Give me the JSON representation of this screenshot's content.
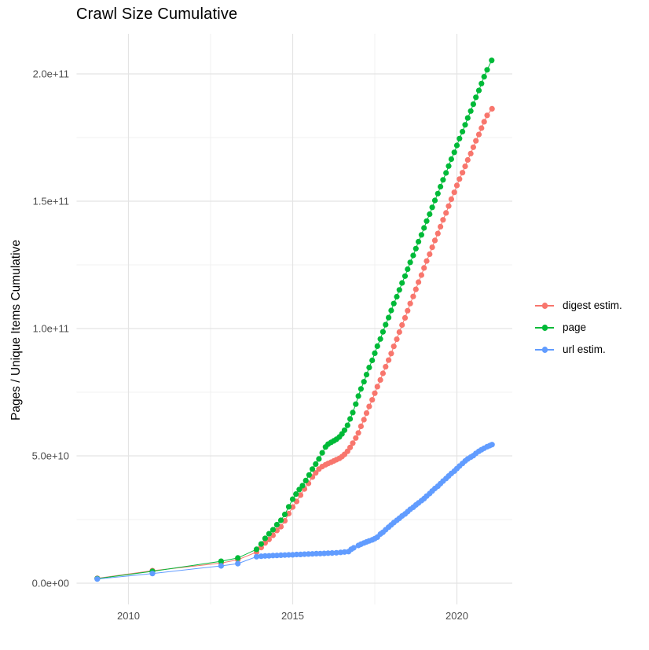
{
  "title": "Crawl Size Cumulative",
  "axes": {
    "y_label": "Pages / Unique Items Cumulative",
    "y_ticks": [
      {
        "label": "0.0e+00",
        "value_e9": 0
      },
      {
        "label": "5.0e+10",
        "value_e9": 50
      },
      {
        "label": "1.0e+11",
        "value_e9": 100
      },
      {
        "label": "1.5e+11",
        "value_e9": 150
      },
      {
        "label": "2.0e+11",
        "value_e9": 200
      }
    ],
    "x_ticks": [
      {
        "label": "2010",
        "value": 2010
      },
      {
        "label": "2015",
        "value": 2015
      },
      {
        "label": "2020",
        "value": 2020
      }
    ]
  },
  "legend": {
    "items": [
      {
        "label": "digest estim.",
        "color": "#F8766D"
      },
      {
        "label": "page",
        "color": "#00BA38"
      },
      {
        "label": "url estim.",
        "color": "#619CFF"
      }
    ]
  },
  "colors": {
    "digest": "#F8766D",
    "page": "#00BA38",
    "url": "#619CFF",
    "grid_major": "#e4e4e4",
    "grid_minor": "#f0f0f0",
    "tick_text": "#4d4d4d"
  },
  "chart_data": {
    "type": "line",
    "title": "Crawl Size Cumulative",
    "xlabel": "",
    "ylabel": "Pages / Unique Items Cumulative",
    "x_unit": "year",
    "y_scale_factor": 1000000000.0,
    "xlim": [
      2008.4,
      2021.7
    ],
    "ylim_e9": [
      -8,
      216
    ],
    "grid": {
      "on": true,
      "minor_y_e9": [
        25,
        75,
        125,
        175
      ],
      "minor_x_years": [
        2012.5,
        2017.5
      ]
    },
    "legend_position": "right",
    "series": [
      {
        "id": "digest",
        "name": "digest estim.",
        "color": "#F8766D",
        "points": [
          [
            2009.05,
            1.9
          ],
          [
            2010.73,
            4.9
          ],
          [
            2012.82,
            7.9
          ],
          [
            2013.33,
            9.2
          ],
          [
            2013.9,
            12.2
          ],
          [
            2014.04,
            14.0
          ],
          [
            2014.16,
            15.8
          ],
          [
            2014.28,
            17.2
          ],
          [
            2014.4,
            18.8
          ],
          [
            2014.52,
            20.7
          ],
          [
            2014.64,
            22.2
          ],
          [
            2014.76,
            24.5
          ],
          [
            2014.88,
            27.3
          ],
          [
            2015.0,
            29.9
          ],
          [
            2015.12,
            32.1
          ],
          [
            2015.24,
            34.6
          ],
          [
            2015.36,
            37.0
          ],
          [
            2015.48,
            39.2
          ],
          [
            2015.6,
            41.7
          ],
          [
            2015.7,
            43.3
          ],
          [
            2015.8,
            44.8
          ],
          [
            2015.9,
            45.8
          ],
          [
            2016.0,
            46.5
          ],
          [
            2016.08,
            47.0
          ],
          [
            2016.17,
            47.5
          ],
          [
            2016.25,
            48.0
          ],
          [
            2016.33,
            48.5
          ],
          [
            2016.42,
            49.0
          ],
          [
            2016.5,
            49.7
          ],
          [
            2016.58,
            50.6
          ],
          [
            2016.67,
            51.8
          ],
          [
            2016.75,
            53.3
          ],
          [
            2016.83,
            55.0
          ],
          [
            2016.92,
            57.0
          ],
          [
            2017.0,
            59.0
          ],
          [
            2017.08,
            61.6
          ],
          [
            2017.17,
            64.2
          ],
          [
            2017.25,
            66.8
          ],
          [
            2017.33,
            69.4
          ],
          [
            2017.42,
            72.0
          ],
          [
            2017.5,
            74.6
          ],
          [
            2017.58,
            77.2
          ],
          [
            2017.67,
            79.8
          ],
          [
            2017.75,
            82.4
          ],
          [
            2017.83,
            85.0
          ],
          [
            2017.92,
            87.6
          ],
          [
            2018.0,
            90.2
          ],
          [
            2018.08,
            93.0
          ],
          [
            2018.17,
            95.8
          ],
          [
            2018.25,
            98.6
          ],
          [
            2018.33,
            101.4
          ],
          [
            2018.42,
            104.2
          ],
          [
            2018.5,
            107.0
          ],
          [
            2018.58,
            109.8
          ],
          [
            2018.67,
            112.6
          ],
          [
            2018.75,
            115.4
          ],
          [
            2018.83,
            118.2
          ],
          [
            2018.92,
            121.0
          ],
          [
            2019.0,
            123.8
          ],
          [
            2019.08,
            126.5
          ],
          [
            2019.17,
            129.2
          ],
          [
            2019.25,
            131.9
          ],
          [
            2019.33,
            134.6
          ],
          [
            2019.42,
            137.3
          ],
          [
            2019.5,
            140.0
          ],
          [
            2019.58,
            142.7
          ],
          [
            2019.67,
            145.4
          ],
          [
            2019.75,
            148.1
          ],
          [
            2019.83,
            150.8
          ],
          [
            2019.92,
            153.5
          ],
          [
            2020.0,
            156.2
          ],
          [
            2020.08,
            158.7
          ],
          [
            2020.17,
            161.2
          ],
          [
            2020.25,
            163.7
          ],
          [
            2020.33,
            166.2
          ],
          [
            2020.42,
            168.7
          ],
          [
            2020.5,
            171.2
          ],
          [
            2020.58,
            173.7
          ],
          [
            2020.67,
            176.2
          ],
          [
            2020.75,
            178.7
          ],
          [
            2020.83,
            181.2
          ],
          [
            2020.92,
            183.7
          ],
          [
            2021.07,
            186.3
          ]
        ]
      },
      {
        "id": "page",
        "name": "page",
        "color": "#00BA38",
        "points": [
          [
            2009.05,
            1.8
          ],
          [
            2010.73,
            4.65
          ],
          [
            2012.82,
            8.6
          ],
          [
            2013.33,
            9.9
          ],
          [
            2013.9,
            13.3
          ],
          [
            2014.04,
            15.4
          ],
          [
            2014.16,
            17.6
          ],
          [
            2014.28,
            19.4
          ],
          [
            2014.4,
            21.0
          ],
          [
            2014.52,
            23.0
          ],
          [
            2014.64,
            24.7
          ],
          [
            2014.76,
            27.0
          ],
          [
            2014.88,
            30.0
          ],
          [
            2015.0,
            33.0
          ],
          [
            2015.1,
            35.0
          ],
          [
            2015.2,
            36.8
          ],
          [
            2015.3,
            38.3
          ],
          [
            2015.4,
            40.3
          ],
          [
            2015.5,
            42.5
          ],
          [
            2015.6,
            44.8
          ],
          [
            2015.7,
            46.8
          ],
          [
            2015.8,
            48.8
          ],
          [
            2015.9,
            51.2
          ],
          [
            2016.0,
            53.5
          ],
          [
            2016.08,
            54.6
          ],
          [
            2016.17,
            55.3
          ],
          [
            2016.25,
            55.9
          ],
          [
            2016.33,
            56.5
          ],
          [
            2016.42,
            57.4
          ],
          [
            2016.5,
            58.6
          ],
          [
            2016.58,
            60.1
          ],
          [
            2016.67,
            62.0
          ],
          [
            2016.75,
            64.5
          ],
          [
            2016.83,
            67.0
          ],
          [
            2016.92,
            70.3
          ],
          [
            2017.0,
            73.5
          ],
          [
            2017.08,
            76.3
          ],
          [
            2017.17,
            79.1
          ],
          [
            2017.25,
            81.9
          ],
          [
            2017.33,
            84.7
          ],
          [
            2017.42,
            87.5
          ],
          [
            2017.5,
            90.3
          ],
          [
            2017.58,
            93.1
          ],
          [
            2017.67,
            95.9
          ],
          [
            2017.75,
            98.7
          ],
          [
            2017.83,
            101.5
          ],
          [
            2017.92,
            104.3
          ],
          [
            2018.0,
            107.1
          ],
          [
            2018.08,
            109.8
          ],
          [
            2018.17,
            112.5
          ],
          [
            2018.25,
            115.2
          ],
          [
            2018.33,
            117.9
          ],
          [
            2018.42,
            120.6
          ],
          [
            2018.5,
            123.3
          ],
          [
            2018.58,
            126.0
          ],
          [
            2018.67,
            128.7
          ],
          [
            2018.75,
            131.4
          ],
          [
            2018.83,
            134.1
          ],
          [
            2018.92,
            136.8
          ],
          [
            2019.0,
            139.5
          ],
          [
            2019.08,
            142.2
          ],
          [
            2019.17,
            144.9
          ],
          [
            2019.25,
            147.6
          ],
          [
            2019.33,
            150.3
          ],
          [
            2019.42,
            153.0
          ],
          [
            2019.5,
            155.7
          ],
          [
            2019.58,
            158.4
          ],
          [
            2019.67,
            161.1
          ],
          [
            2019.75,
            163.8
          ],
          [
            2019.83,
            166.5
          ],
          [
            2019.92,
            169.2
          ],
          [
            2020.0,
            171.9
          ],
          [
            2020.08,
            174.6
          ],
          [
            2020.17,
            177.3
          ],
          [
            2020.25,
            180.0
          ],
          [
            2020.33,
            182.7
          ],
          [
            2020.42,
            185.4
          ],
          [
            2020.5,
            188.1
          ],
          [
            2020.58,
            190.8
          ],
          [
            2020.67,
            193.5
          ],
          [
            2020.75,
            196.2
          ],
          [
            2020.83,
            198.9
          ],
          [
            2020.92,
            201.6
          ],
          [
            2021.06,
            205.3
          ]
        ]
      },
      {
        "id": "url",
        "name": "url estim.",
        "color": "#619CFF",
        "points": [
          [
            2009.05,
            1.65
          ],
          [
            2010.73,
            3.8
          ],
          [
            2012.82,
            6.8
          ],
          [
            2013.33,
            7.7
          ],
          [
            2013.9,
            10.4
          ],
          [
            2014.04,
            10.6
          ],
          [
            2014.16,
            10.7
          ],
          [
            2014.28,
            10.75
          ],
          [
            2014.4,
            10.85
          ],
          [
            2014.52,
            10.9
          ],
          [
            2014.64,
            11.0
          ],
          [
            2014.76,
            11.05
          ],
          [
            2014.88,
            11.1
          ],
          [
            2015.0,
            11.15
          ],
          [
            2015.12,
            11.25
          ],
          [
            2015.24,
            11.3
          ],
          [
            2015.36,
            11.4
          ],
          [
            2015.48,
            11.45
          ],
          [
            2015.6,
            11.5
          ],
          [
            2015.72,
            11.6
          ],
          [
            2015.84,
            11.65
          ],
          [
            2015.96,
            11.7
          ],
          [
            2016.08,
            11.8
          ],
          [
            2016.2,
            11.85
          ],
          [
            2016.33,
            11.95
          ],
          [
            2016.46,
            12.1
          ],
          [
            2016.58,
            12.25
          ],
          [
            2016.7,
            12.4
          ],
          [
            2016.78,
            13.3
          ],
          [
            2016.86,
            13.9
          ],
          [
            2017.0,
            14.8
          ],
          [
            2017.08,
            15.3
          ],
          [
            2017.17,
            15.8
          ],
          [
            2017.25,
            16.2
          ],
          [
            2017.33,
            16.6
          ],
          [
            2017.42,
            17.0
          ],
          [
            2017.5,
            17.5
          ],
          [
            2017.58,
            18.1
          ],
          [
            2017.67,
            19.3
          ],
          [
            2017.75,
            20.0
          ],
          [
            2017.83,
            21.0
          ],
          [
            2017.92,
            22.0
          ],
          [
            2018.0,
            22.9
          ],
          [
            2018.08,
            23.8
          ],
          [
            2018.17,
            24.7
          ],
          [
            2018.25,
            25.5
          ],
          [
            2018.33,
            26.4
          ],
          [
            2018.42,
            27.2
          ],
          [
            2018.5,
            28.1
          ],
          [
            2018.58,
            29.0
          ],
          [
            2018.67,
            29.8
          ],
          [
            2018.75,
            30.7
          ],
          [
            2018.83,
            31.5
          ],
          [
            2018.92,
            32.4
          ],
          [
            2019.0,
            33.2
          ],
          [
            2019.08,
            34.2
          ],
          [
            2019.17,
            35.2
          ],
          [
            2019.25,
            36.2
          ],
          [
            2019.33,
            37.2
          ],
          [
            2019.42,
            38.1
          ],
          [
            2019.5,
            39.1
          ],
          [
            2019.58,
            40.1
          ],
          [
            2019.67,
            41.1
          ],
          [
            2019.75,
            42.1
          ],
          [
            2019.83,
            43.1
          ],
          [
            2019.92,
            44.0
          ],
          [
            2020.0,
            45.0
          ],
          [
            2020.08,
            46.0
          ],
          [
            2020.17,
            47.0
          ],
          [
            2020.25,
            48.0
          ],
          [
            2020.33,
            48.8
          ],
          [
            2020.42,
            49.5
          ],
          [
            2020.5,
            50.1
          ],
          [
            2020.58,
            51.0
          ],
          [
            2020.67,
            51.8
          ],
          [
            2020.75,
            52.4
          ],
          [
            2020.83,
            53.0
          ],
          [
            2020.92,
            53.6
          ],
          [
            2021.0,
            54.0
          ],
          [
            2021.07,
            54.4
          ]
        ]
      }
    ]
  }
}
